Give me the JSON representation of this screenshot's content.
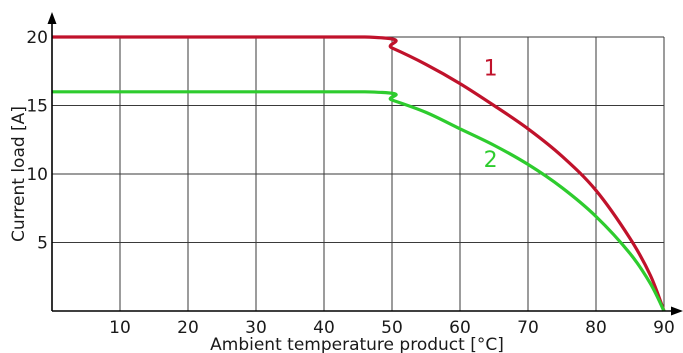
{
  "chart_data": {
    "type": "line",
    "xlabel": "Ambient temperature product [°C]",
    "ylabel": "Current load [A]",
    "xlim": [
      0,
      90
    ],
    "ylim": [
      0,
      20
    ],
    "x_ticks": [
      10,
      20,
      30,
      40,
      50,
      60,
      70,
      80,
      90
    ],
    "y_ticks": [
      5,
      10,
      15,
      20
    ],
    "grid": true,
    "series": [
      {
        "name": "1",
        "color": "#c0122b",
        "points": [
          [
            0,
            20
          ],
          [
            46,
            20
          ],
          [
            50,
            19.2
          ],
          [
            55,
            18.0
          ],
          [
            60,
            16.6
          ],
          [
            65,
            15.0
          ],
          [
            70,
            13.3
          ],
          [
            75,
            11.3
          ],
          [
            80,
            8.8
          ],
          [
            85,
            5.3
          ],
          [
            88,
            2.6
          ],
          [
            90,
            0
          ]
        ]
      },
      {
        "name": "2",
        "color": "#2ecc2e",
        "points": [
          [
            0,
            16
          ],
          [
            46,
            16
          ],
          [
            50,
            15.4
          ],
          [
            55,
            14.5
          ],
          [
            60,
            13.3
          ],
          [
            65,
            12.1
          ],
          [
            70,
            10.7
          ],
          [
            75,
            9.0
          ],
          [
            80,
            6.9
          ],
          [
            85,
            4.2
          ],
          [
            88,
            2.0
          ],
          [
            90,
            0
          ]
        ]
      }
    ]
  }
}
